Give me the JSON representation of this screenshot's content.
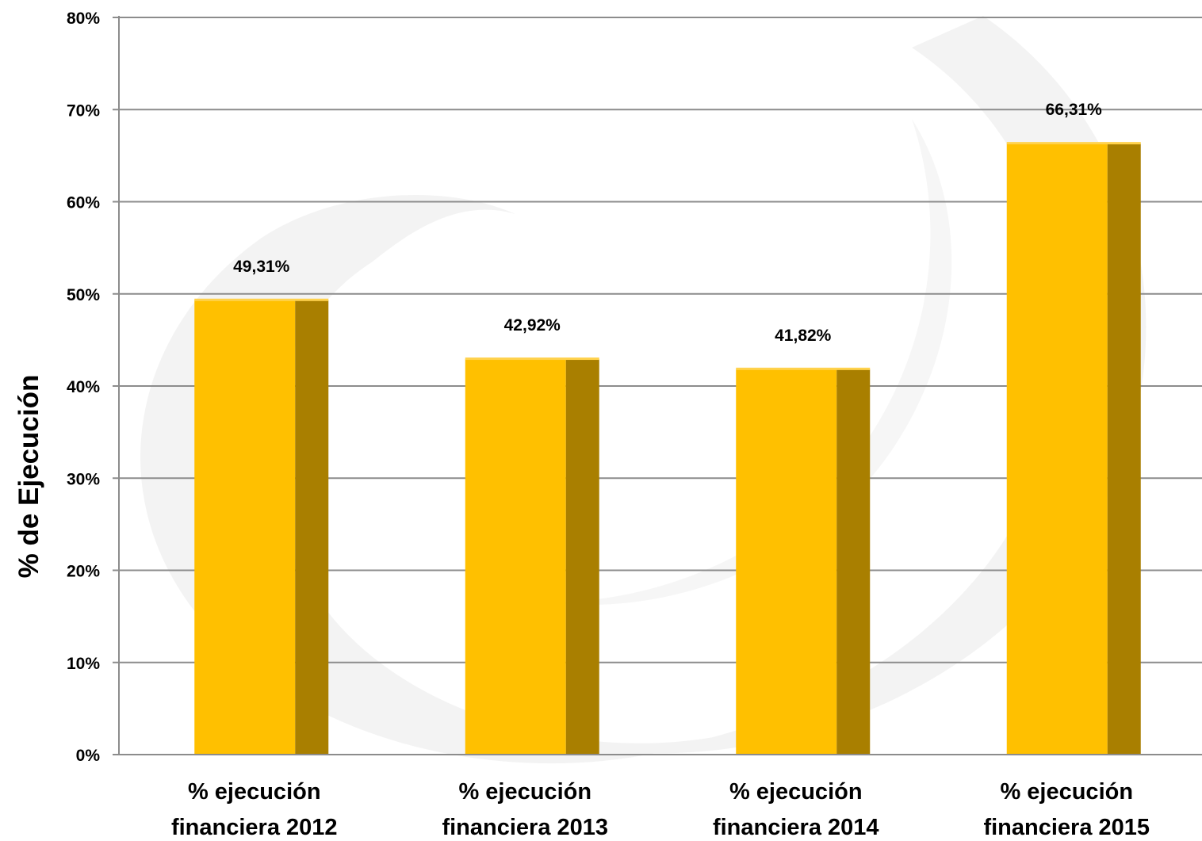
{
  "chart_data": {
    "type": "bar",
    "categories": [
      "% ejecución financiera 2012",
      "% ejecución financiera 2013",
      "% ejecución financiera 2014",
      "% ejecución financiera 2015"
    ],
    "category_lines": [
      [
        "% ejecución",
        "financiera 2012"
      ],
      [
        "% ejecución",
        "financiera 2013"
      ],
      [
        "% ejecución",
        "financiera 2014"
      ],
      [
        "% ejecución",
        "financiera 2015"
      ]
    ],
    "values": [
      49.31,
      42.92,
      41.82,
      66.31
    ],
    "data_labels": [
      "49,31%",
      "42,92%",
      "41,82%",
      "66,31%"
    ],
    "ylabel": "% de Ejecución",
    "xlabel": "",
    "ylim": [
      0,
      80
    ],
    "yticks": [
      0,
      10,
      20,
      30,
      40,
      50,
      60,
      70,
      80
    ],
    "ytick_labels": [
      "0%",
      "10%",
      "20%",
      "30%",
      "40%",
      "50%",
      "60%",
      "70%",
      "80%"
    ],
    "grid": true,
    "legend": "none",
    "colors": {
      "bar_front": "#FFC000",
      "bar_side": "#A97F00",
      "bar_top": "#FFD24D",
      "gridline": "#8C8C8C",
      "watermark": "#F2F2F2"
    }
  }
}
